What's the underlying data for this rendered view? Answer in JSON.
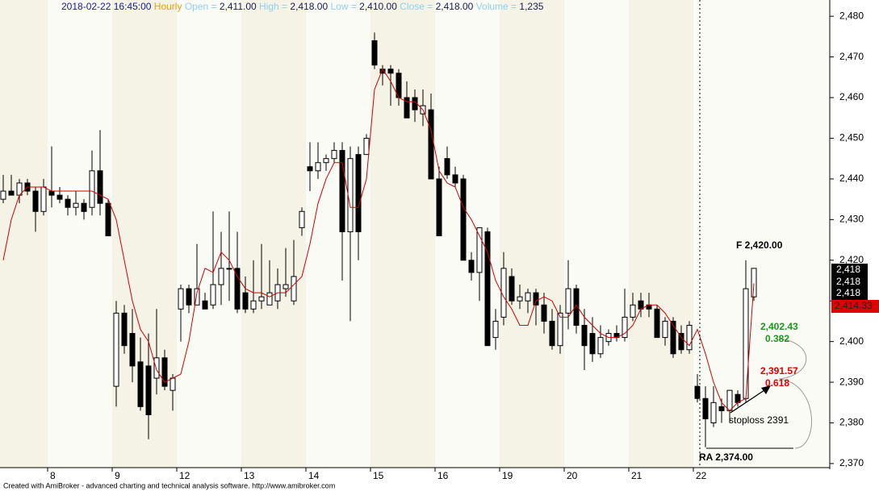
{
  "chart_data": {
    "type": "candlestick",
    "header": {
      "date": "2018-02-22 16:45:00",
      "interval": "Hourly",
      "fields": [
        {
          "label": "Open =",
          "value": "2,411.00"
        },
        {
          "label": "High =",
          "value": "2,418.00"
        },
        {
          "label": "Low =",
          "value": "2,410.00"
        },
        {
          "label": "Close =",
          "value": "2,418.00"
        },
        {
          "label": "Volume =",
          "value": "1,235"
        }
      ]
    },
    "categories": [
      null,
      null,
      null,
      null,
      null,
      null,
      "8",
      null,
      null,
      null,
      null,
      null,
      null,
      null,
      "9",
      null,
      null,
      null,
      null,
      null,
      null,
      null,
      "12",
      null,
      null,
      null,
      null,
      null,
      null,
      null,
      "13",
      null,
      null,
      null,
      null,
      null,
      null,
      null,
      "14",
      null,
      null,
      null,
      null,
      null,
      null,
      null,
      "15",
      null,
      null,
      null,
      null,
      null,
      null,
      null,
      "16",
      null,
      null,
      null,
      null,
      null,
      null,
      null,
      "19",
      null,
      null,
      null,
      null,
      null,
      null,
      null,
      "20",
      null,
      null,
      null,
      null,
      null,
      null,
      null,
      "21",
      null,
      null,
      null,
      null,
      null,
      null,
      null,
      "22",
      null,
      null,
      null,
      null,
      null,
      null,
      null
    ],
    "open": [
      2435,
      2437,
      2436,
      2439,
      2437,
      2432,
      2437,
      2436,
      2435,
      2433,
      2434,
      2433,
      2442,
      2434,
      2389,
      2407,
      2402,
      2395,
      2394,
      2391,
      2396,
      2388,
      2408,
      2413,
      2409,
      2410,
      2409,
      2414,
      2418,
      2418,
      2412,
      2408,
      2410,
      2409,
      2410,
      2413,
      2410,
      2428,
      2443,
      2442,
      2444,
      2445,
      2447,
      2427,
      2446,
      2446,
      2474,
      2467,
      2467,
      2466,
      2460,
      2460,
      2456,
      2457,
      2440,
      2445,
      2441,
      2440,
      2420,
      2417,
      2427,
      2401,
      2406,
      2416,
      2410,
      2410,
      2412,
      2409,
      2405,
      2399,
      2407,
      2413,
      2404,
      2402,
      2397,
      2400,
      2402,
      2401,
      2406,
      2410,
      2409,
      2408,
      2401,
      2405,
      2402,
      2398,
      2389,
      2386,
      2380,
      2384,
      2383,
      2387,
      2386,
      2411
    ],
    "high": [
      2441,
      2441,
      2440,
      2440,
      2438,
      2440,
      2448,
      2438,
      2436,
      2437,
      2435,
      2447,
      2452,
      2435,
      2410,
      2409,
      2408,
      2401,
      2402,
      2408,
      2398,
      2392,
      2414,
      2414,
      2424,
      2412,
      2432,
      2427,
      2432,
      2427,
      2416,
      2420,
      2424,
      2420,
      2418,
      2423,
      2425,
      2433,
      2449,
      2449,
      2446,
      2449,
      2449,
      2448,
      2448,
      2451,
      2476,
      2468,
      2468,
      2467,
      2464,
      2462,
      2462,
      2461,
      2443,
      2448,
      2443,
      2441,
      2422,
      2428,
      2428,
      2408,
      2422,
      2418,
      2414,
      2413,
      2413,
      2412,
      2408,
      2409,
      2420,
      2414,
      2408,
      2406,
      2404,
      2403,
      2404,
      2413,
      2412,
      2412,
      2412,
      2409,
      2406,
      2406,
      2404,
      2405,
      2392,
      2389,
      2389,
      2386,
      2388,
      2388,
      2420,
      2418
    ],
    "low": [
      2434,
      2436,
      2434,
      2436,
      2427,
      2431,
      2433,
      2434,
      2431,
      2431,
      2430,
      2431,
      2431,
      2426,
      2384,
      2397,
      2390,
      2383,
      2376,
      2387,
      2388,
      2383,
      2400,
      2407,
      2409,
      2408,
      2408,
      2409,
      2410,
      2407,
      2407,
      2407,
      2408,
      2409,
      2408,
      2411,
      2409,
      2426,
      2437,
      2440,
      2442,
      2444,
      2415,
      2405,
      2420,
      2446,
      2467,
      2463,
      2458,
      2458,
      2455,
      2454,
      2453,
      2440,
      2426,
      2440,
      2438,
      2420,
      2415,
      2410,
      2399,
      2398,
      2404,
      2409,
      2408,
      2407,
      2404,
      2402,
      2398,
      2397,
      2403,
      2402,
      2393,
      2395,
      2396,
      2399,
      2400,
      2400,
      2405,
      2406,
      2406,
      2401,
      2399,
      2396,
      2397,
      2397,
      2385,
      2374,
      2379,
      2380,
      2380,
      2384,
      2385,
      2410
    ],
    "close": [
      2437,
      2436,
      2439,
      2437,
      2432,
      2438,
      2436,
      2435,
      2433,
      2434,
      2432,
      2442,
      2434,
      2426,
      2407,
      2399,
      2394,
      2384,
      2382,
      2396,
      2389,
      2391,
      2413,
      2409,
      2413,
      2408,
      2414,
      2418,
      2418,
      2408,
      2408,
      2410,
      2411,
      2412,
      2414,
      2414,
      2416,
      2432,
      2442,
      2444,
      2445,
      2447,
      2427,
      2445,
      2427,
      2450,
      2468,
      2466,
      2466,
      2460,
      2455,
      2457,
      2458,
      2440,
      2426,
      2441,
      2439,
      2420,
      2417,
      2428,
      2399,
      2405,
      2418,
      2410,
      2411,
      2412,
      2409,
      2405,
      2399,
      2407,
      2413,
      2404,
      2399,
      2397,
      2401,
      2402,
      2401,
      2406,
      2409,
      2408,
      2408,
      2401,
      2405,
      2397,
      2398,
      2404,
      2386,
      2381,
      2385,
      2383,
      2388,
      2385,
      2413,
      2418
    ],
    "series": [
      {
        "color": "#d40000",
        "values": [
          2420,
          2430,
          2436,
          2438,
          2438,
          2438,
          2437,
          2437,
          2437,
          2437,
          2437,
          2437,
          2436,
          2435,
          2430,
          2420,
          2410,
          2403,
          2400,
          2393,
          2390,
          2391,
          2392,
          2400,
          2412,
          2418,
          2417,
          2422,
          2420,
          2416,
          2413,
          2412,
          2412,
          2411,
          2412,
          2412,
          2414,
          2416,
          2424,
          2434,
          2440,
          2444,
          2444,
          2433,
          2433,
          2440,
          2462,
          2467,
          2464,
          2460,
          2459,
          2459,
          2457,
          2452,
          2442,
          2439,
          2438,
          2433,
          2430,
          2426,
          2422,
          2415,
          2411,
          2408,
          2404,
          2404,
          2410,
          2411,
          2410,
          2406,
          2406,
          2409,
          2406,
          2404,
          2402,
          2401,
          2401,
          2402,
          2404,
          2408,
          2409,
          2409,
          2407,
          2404,
          2401,
          2399,
          2403,
          2397,
          2390,
          2385,
          2383,
          2385,
          2386,
          2414.33
        ]
      }
    ],
    "ylim": [
      2369,
      2484
    ],
    "yticks": [
      {
        "value": 2370,
        "label": "2,370"
      },
      {
        "value": 2380,
        "label": "2,380"
      },
      {
        "value": 2390,
        "label": "2,390"
      },
      {
        "value": 2400,
        "label": "2,400"
      },
      {
        "value": 2410,
        "label": "2,410"
      },
      {
        "value": 2420,
        "label": "2,420"
      },
      {
        "value": 2430,
        "label": "2,430"
      },
      {
        "value": 2440,
        "label": "2,440"
      },
      {
        "value": 2450,
        "label": "2,450"
      },
      {
        "value": 2460,
        "label": "2,460"
      },
      {
        "value": 2470,
        "label": "2,470"
      },
      {
        "value": 2480,
        "label": "2,480"
      }
    ],
    "price_labels": [
      "2,418",
      "2,418",
      "2,418",
      "2,414.33"
    ],
    "annotations": {
      "f_level": "F  2,420.00",
      "fib382_price": "2,402.43",
      "fib382": "0.382",
      "fib618_price": "2,391.57",
      "fib618": "0.618",
      "stoploss": "stoploss 2391",
      "ra_level": "RA  2,374.00"
    },
    "footer": "Created with AmiBroker - advanced charting and technical analysis software. http://www.amibroker.com"
  }
}
